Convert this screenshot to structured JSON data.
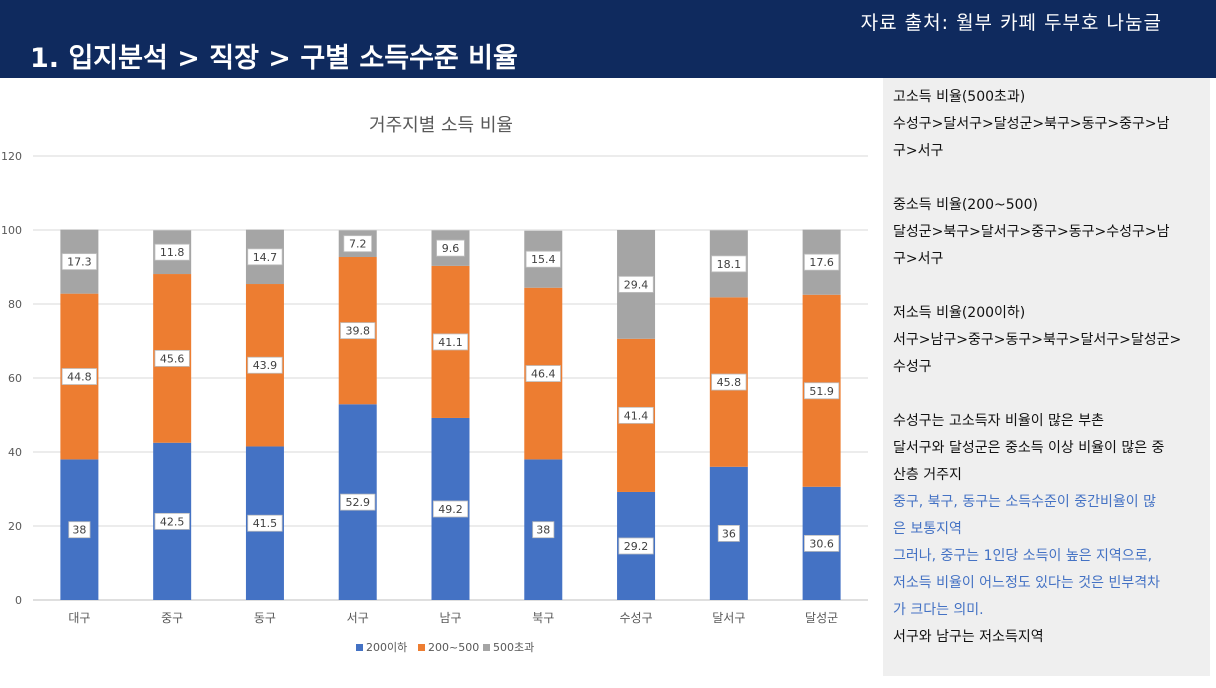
{
  "header": {
    "title": "1. 입지분석 > 직장 > 구별 소득수준 비율",
    "source": "자료 출처: 월부 카페 두부호 나눔글"
  },
  "colors": {
    "header_bg": "#0f2a5e",
    "series": [
      "#4472c4",
      "#ed7d31",
      "#a5a5a5"
    ]
  },
  "chart_data": {
    "type": "bar",
    "stacked": true,
    "title": "거주지별 소득 비율",
    "categories": [
      "대구",
      "중구",
      "동구",
      "서구",
      "남구",
      "북구",
      "수성구",
      "달서구",
      "달성군"
    ],
    "series": [
      {
        "name": "200이하",
        "values": [
          38,
          42.5,
          41.5,
          52.9,
          49.2,
          38,
          29.2,
          36,
          30.6
        ]
      },
      {
        "name": "200~500",
        "values": [
          44.8,
          45.6,
          43.9,
          39.8,
          41.1,
          46.4,
          41.4,
          45.8,
          51.9
        ]
      },
      {
        "name": "500초과",
        "values": [
          17.3,
          11.8,
          14.7,
          7.2,
          9.6,
          15.4,
          29.4,
          18.1,
          17.6
        ]
      }
    ],
    "y_ticks": [
      "0",
      "20",
      "40",
      "60",
      "80",
      "100",
      "120"
    ],
    "ylim": [
      0,
      120
    ],
    "grid": true,
    "legend": "bottom"
  },
  "notes": [
    {
      "text": "고소득 비율(500초과)",
      "style": "normal"
    },
    {
      "text": "수성구>달서구>달성군>북구>동구>중구>남",
      "style": "normal"
    },
    {
      "text": "구>서구",
      "style": "normal"
    },
    {
      "text": "",
      "style": "gap"
    },
    {
      "text": "중소득 비율(200~500)",
      "style": "normal"
    },
    {
      "text": "달성군>북구>달서구>중구>동구>수성구>남",
      "style": "normal"
    },
    {
      "text": "구>서구",
      "style": "normal"
    },
    {
      "text": "",
      "style": "gap"
    },
    {
      "text": "저소득 비율(200이하)",
      "style": "normal"
    },
    {
      "text": "서구>남구>중구>동구>북구>달서구>달성군>",
      "style": "normal"
    },
    {
      "text": "수성구",
      "style": "normal"
    },
    {
      "text": "",
      "style": "gap"
    },
    {
      "text": "수성구는 고소득자 비율이 많은 부촌",
      "style": "normal"
    },
    {
      "text": "달서구와 달성군은 중소득 이상 비율이 많은 중",
      "style": "normal"
    },
    {
      "text": "산층 거주지",
      "style": "normal"
    },
    {
      "text": "중구, 북구, 동구는 소득수준이 중간비율이 많",
      "style": "blue"
    },
    {
      "text": "은 보통지역",
      "style": "blue"
    },
    {
      "text": "그러나, 중구는 1인당 소득이 높은 지역으로,",
      "style": "blue"
    },
    {
      "text": "저소득 비율이 어느정도 있다는 것은 빈부격차",
      "style": "blue"
    },
    {
      "text": "가 크다는 의미.",
      "style": "blue"
    },
    {
      "text": "서구와 남구는 저소득지역",
      "style": "normal"
    }
  ]
}
